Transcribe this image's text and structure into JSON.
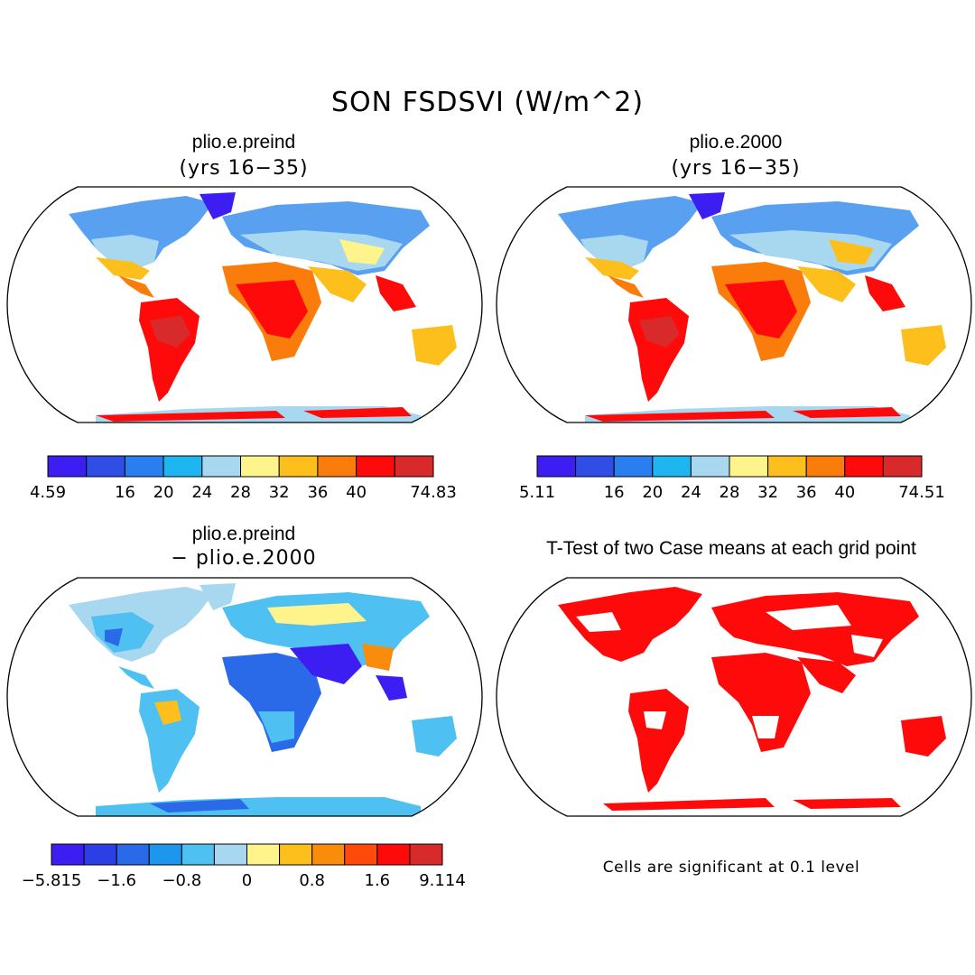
{
  "figure": {
    "title": "SON FSDSVI (W/m^2)",
    "note": "Cells are significant at 0.1 level"
  },
  "panels": [
    {
      "name": "plio.e.preind",
      "subtitle": "(yrs 16−35)",
      "colorbar": {
        "colors": [
          "#3c1ef2",
          "#2e4ee6",
          "#2a7ff0",
          "#1eb6f0",
          "#a8d8f0",
          "#fff38c",
          "#fcbf1c",
          "#fa7d0c",
          "#ff0a0a",
          "#d82a2a"
        ],
        "labels": [
          "4.59",
          "",
          "16",
          "20",
          "24",
          "28",
          "32",
          "36",
          "40",
          "",
          "74.83"
        ]
      }
    },
    {
      "name": "plio.e.2000",
      "subtitle": "(yrs 16−35)",
      "colorbar": {
        "colors": [
          "#3c1ef2",
          "#2e4ee6",
          "#2a7ff0",
          "#1eb6f0",
          "#a8d8f0",
          "#fff38c",
          "#fcbf1c",
          "#fa7d0c",
          "#ff0a0a",
          "#d82a2a"
        ],
        "labels": [
          "5.11",
          "",
          "16",
          "20",
          "24",
          "28",
          "32",
          "36",
          "40",
          "",
          "74.51"
        ]
      }
    },
    {
      "name": "plio.e.preind",
      "subtitle": "− plio.e.2000",
      "colorbar": {
        "colors": [
          "#3c1ef2",
          "#2e3ee6",
          "#2a6ae8",
          "#1e96ee",
          "#4ec0f2",
          "#a8d8f0",
          "#fff38c",
          "#fcbf1c",
          "#fa8c0c",
          "#ff4a0a",
          "#ff0a0a",
          "#d82a2a"
        ],
        "labels": [
          "−5.815",
          "",
          "−1.6",
          "",
          "−0.8",
          "",
          "0",
          "",
          "0.8",
          "",
          "1.6",
          "",
          "9.114"
        ]
      }
    },
    {
      "name": "T-Test of two Case means at each grid point",
      "subtitle": ""
    }
  ]
}
